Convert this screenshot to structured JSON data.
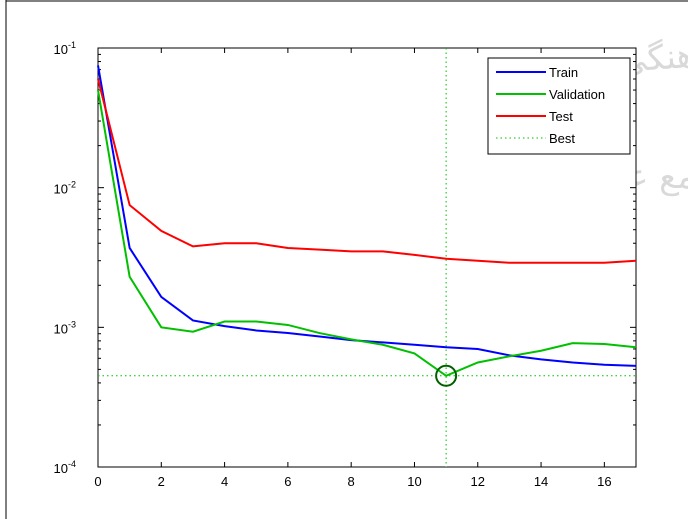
{
  "chart_data": {
    "type": "line",
    "yscale": "log",
    "title": "",
    "xlabel": "",
    "ylabel": "",
    "xlim": [
      0,
      17
    ],
    "ylim": [
      0.0001,
      0.1
    ],
    "x_ticks": [
      0,
      2,
      4,
      6,
      8,
      10,
      12,
      14,
      16
    ],
    "y_ticks": [
      {
        "value": 0.0001,
        "base": "10",
        "exp": "-4"
      },
      {
        "value": 0.001,
        "base": "10",
        "exp": "-3"
      },
      {
        "value": 0.01,
        "base": "10",
        "exp": "-2"
      },
      {
        "value": 0.1,
        "base": "10",
        "exp": "-1"
      }
    ],
    "grid": false,
    "legend_position": "top-right",
    "series": [
      {
        "name": "Train",
        "color": "#0000ff",
        "style": "solid",
        "x": [
          0,
          1,
          2,
          3,
          4,
          5,
          6,
          7,
          8,
          9,
          10,
          11,
          12,
          13,
          14,
          15,
          16,
          17
        ],
        "y": [
          0.075,
          0.0037,
          0.00165,
          0.00112,
          0.00102,
          0.00095,
          0.00091,
          0.00086,
          0.00081,
          0.00078,
          0.00075,
          0.00072,
          0.0007,
          0.00063,
          0.00059,
          0.00056,
          0.00054,
          0.00053
        ]
      },
      {
        "name": "Validation",
        "color": "#00c000",
        "style": "solid",
        "x": [
          0,
          1,
          2,
          3,
          4,
          5,
          6,
          7,
          8,
          9,
          10,
          11,
          12,
          13,
          14,
          15,
          16,
          17
        ],
        "y": [
          0.05,
          0.0023,
          0.001,
          0.00093,
          0.0011,
          0.0011,
          0.00104,
          0.00091,
          0.00082,
          0.00075,
          0.00065,
          0.00045,
          0.00056,
          0.00062,
          0.00068,
          0.00077,
          0.00076,
          0.00072
        ]
      },
      {
        "name": "Test",
        "color": "#ff0000",
        "style": "solid",
        "x": [
          0,
          1,
          2,
          3,
          4,
          5,
          6,
          7,
          8,
          9,
          10,
          11,
          12,
          13,
          14,
          15,
          16,
          17
        ],
        "y": [
          0.06,
          0.0075,
          0.0049,
          0.0038,
          0.004,
          0.004,
          0.0037,
          0.0036,
          0.0035,
          0.0035,
          0.0033,
          0.0031,
          0.003,
          0.0029,
          0.0029,
          0.0029,
          0.0029,
          0.003
        ]
      }
    ],
    "best": {
      "name": "Best",
      "color": "#00c000",
      "style": "dotted",
      "x": 11,
      "y": 0.00045
    }
  },
  "watermark": {
    "line1": "پژوهشگاه علوم انسانی و مطالعات فرهنگی",
    "line2": "پرتال جامع علوم انسانی"
  }
}
